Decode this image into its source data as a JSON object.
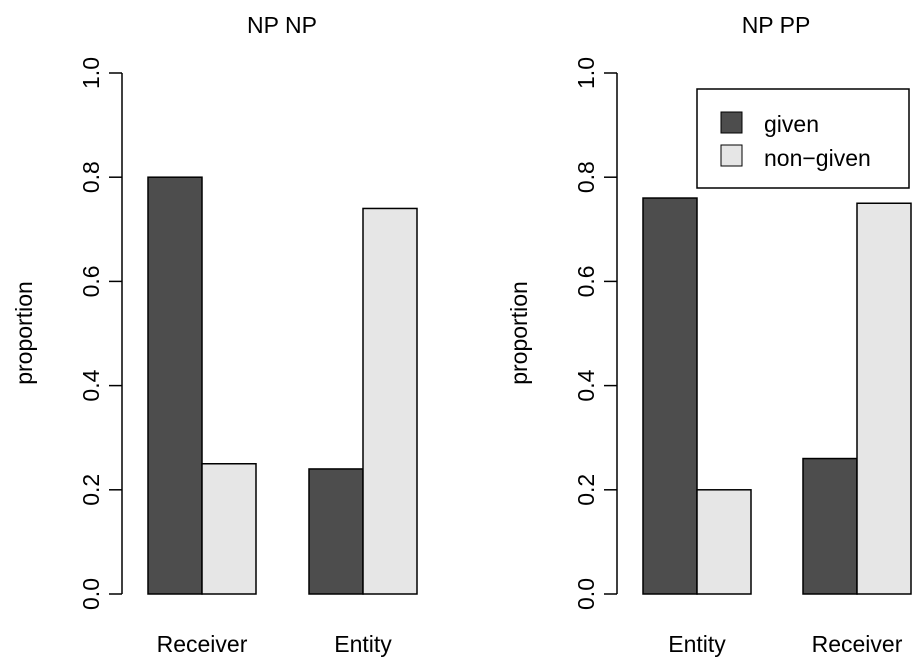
{
  "colors": {
    "given": "#4d4d4d",
    "non_given": "#e6e6e6",
    "stroke": "#000000"
  },
  "chart_data": [
    {
      "type": "bar",
      "title": "NP NP",
      "ylabel": "proportion",
      "xlabel": "",
      "categories": [
        "Receiver",
        "Entity"
      ],
      "series": [
        {
          "name": "given",
          "values": [
            0.8,
            0.24
          ]
        },
        {
          "name": "non-given",
          "values": [
            0.25,
            0.74
          ]
        }
      ],
      "ylim": [
        0,
        1
      ],
      "yticks": [
        "0.0",
        "0.2",
        "0.4",
        "0.6",
        "0.8",
        "1.0"
      ],
      "grid": false,
      "legend": "none"
    },
    {
      "type": "bar",
      "title": "NP PP",
      "ylabel": "proportion",
      "xlabel": "",
      "categories": [
        "Entity",
        "Receiver"
      ],
      "series": [
        {
          "name": "given",
          "values": [
            0.76,
            0.26
          ]
        },
        {
          "name": "non-given",
          "values": [
            0.2,
            0.75
          ]
        }
      ],
      "ylim": [
        0,
        1
      ],
      "yticks": [
        "0.0",
        "0.2",
        "0.4",
        "0.6",
        "0.8",
        "1.0"
      ],
      "grid": false,
      "legend": "top-right"
    }
  ],
  "legend": {
    "items": [
      "given",
      "non−given"
    ]
  }
}
